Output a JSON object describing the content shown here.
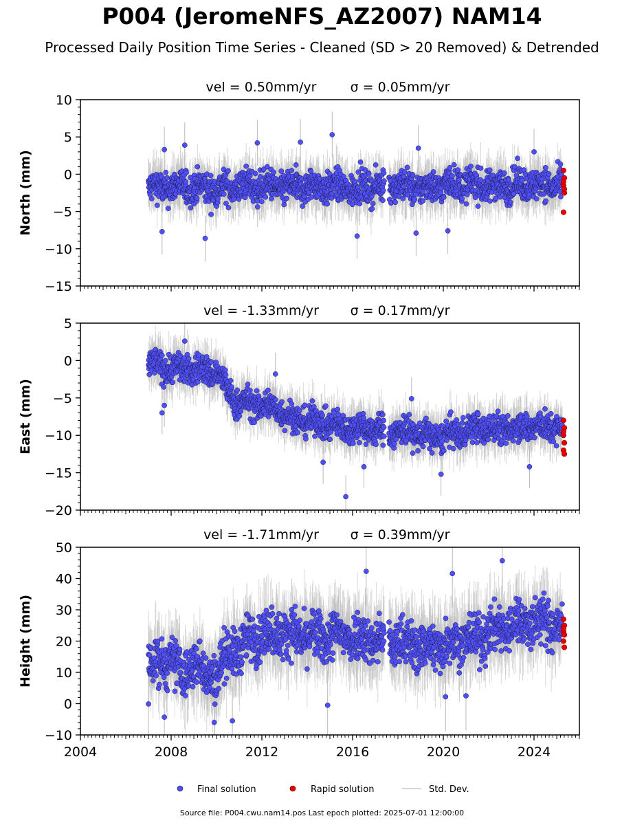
{
  "title": "P004 (JeromeNFS_AZ2007) NAM14",
  "subtitle": "Processed Daily Position Time Series - Cleaned (SD > 20 Removed) & Detrended",
  "footer": "Source file: P004.cwu.nam14.pos  Last epoch plotted: 2025-07-01 12:00:00",
  "colors": {
    "final": "#4f4ff5",
    "final_edge": "#1a1a4a",
    "rapid": "#e80000",
    "stddev": "#b8b8b8"
  },
  "legend": {
    "final": "Final solution",
    "rapid": "Rapid solution",
    "stddev": "Std. Dev."
  },
  "chart_data": [
    {
      "type": "scatter",
      "ylabel": "North (mm)",
      "vel_label": "vel = 0.50mm/yr",
      "sigma_label": "σ = 0.05mm/yr",
      "xlim": [
        2004,
        2026
      ],
      "ylim": [
        -15,
        10
      ],
      "yticks": [
        -15,
        -10,
        -5,
        0,
        5,
        10
      ],
      "xticks": [
        2004,
        2008,
        2012,
        2016,
        2020,
        2024
      ],
      "trend": [
        [
          2007.0,
          -1.8
        ],
        [
          2008.5,
          -1.7
        ],
        [
          2010.0,
          -2.0
        ],
        [
          2011.5,
          -1.5
        ],
        [
          2013.0,
          -1.8
        ],
        [
          2014.5,
          -1.6
        ],
        [
          2016.0,
          -2.0
        ],
        [
          2017.5,
          -1.4
        ],
        [
          2019.0,
          -1.9
        ],
        [
          2020.5,
          -1.2
        ],
        [
          2022.0,
          -1.6
        ],
        [
          2023.5,
          -1.3
        ],
        [
          2025.2,
          -1.5
        ]
      ],
      "spread": 1.4,
      "gap": [
        2017.4,
        2017.6
      ],
      "outliers": [
        [
          2007.6,
          -7.7
        ],
        [
          2009.5,
          -8.6
        ],
        [
          2015.1,
          5.3
        ],
        [
          2013.7,
          4.3
        ],
        [
          2016.2,
          -8.3
        ],
        [
          2011.8,
          4.2
        ],
        [
          2018.8,
          -7.9
        ],
        [
          2020.2,
          -7.6
        ],
        [
          2024.0,
          3.0
        ],
        [
          2018.9,
          3.5
        ],
        [
          2007.7,
          3.3
        ],
        [
          2008.6,
          3.9
        ]
      ],
      "rapid": [
        [
          2025.3,
          0.5
        ],
        [
          2025.3,
          -0.5
        ],
        [
          2025.3,
          -1.5
        ],
        [
          2025.3,
          -2.5
        ],
        [
          2025.3,
          -1.0
        ],
        [
          2025.3,
          -2.0
        ],
        [
          2025.3,
          -5.1
        ]
      ]
    },
    {
      "type": "scatter",
      "ylabel": "East (mm)",
      "vel_label": "vel = -1.33mm/yr",
      "sigma_label": "σ = 0.17mm/yr",
      "xlim": [
        2004,
        2026
      ],
      "ylim": [
        -20,
        5
      ],
      "yticks": [
        -20,
        -15,
        -10,
        -5,
        0,
        5
      ],
      "xticks": [
        2004,
        2008,
        2012,
        2016,
        2020,
        2024
      ],
      "trend": [
        [
          2007.0,
          -0.5
        ],
        [
          2008.0,
          -1.0
        ],
        [
          2009.0,
          -1.2
        ],
        [
          2010.0,
          -1.5
        ],
        [
          2010.4,
          -3.5
        ],
        [
          2010.8,
          -5.5
        ],
        [
          2012.0,
          -6.0
        ],
        [
          2012.8,
          -6.5
        ],
        [
          2013.3,
          -7.8
        ],
        [
          2014.5,
          -8.2
        ],
        [
          2015.5,
          -9.0
        ],
        [
          2016.5,
          -9.0
        ],
        [
          2017.5,
          -9.5
        ],
        [
          2018.5,
          -9.5
        ],
        [
          2019.5,
          -10.3
        ],
        [
          2020.5,
          -9.8
        ],
        [
          2021.5,
          -9.0
        ],
        [
          2022.5,
          -9.2
        ],
        [
          2023.5,
          -8.8
        ],
        [
          2025.2,
          -9.0
        ]
      ],
      "spread": 1.3,
      "gap": [
        2017.4,
        2017.6
      ],
      "outliers": [
        [
          2007.6,
          -7.0
        ],
        [
          2007.7,
          -6.0
        ],
        [
          2015.7,
          -18.2
        ],
        [
          2012.6,
          -1.8
        ],
        [
          2008.6,
          2.6
        ],
        [
          2014.7,
          -13.6
        ],
        [
          2019.9,
          -15.2
        ],
        [
          2023.8,
          -14.2
        ],
        [
          2016.5,
          -14.2
        ],
        [
          2018.6,
          -5.1
        ]
      ],
      "rapid": [
        [
          2025.3,
          -8.0
        ],
        [
          2025.3,
          -9.0
        ],
        [
          2025.3,
          -10.0
        ],
        [
          2025.3,
          -11.0
        ],
        [
          2025.3,
          -12.0
        ],
        [
          2025.3,
          -12.5
        ],
        [
          2025.3,
          -9.5
        ]
      ]
    },
    {
      "type": "scatter",
      "ylabel": "Height (mm)",
      "vel_label": "vel = -1.71mm/yr",
      "sigma_label": "σ = 0.39mm/yr",
      "xlim": [
        2004,
        2026
      ],
      "ylim": [
        -10,
        50
      ],
      "yticks": [
        -10,
        0,
        10,
        20,
        30,
        40,
        50
      ],
      "xticks": [
        2004,
        2008,
        2012,
        2016,
        2020,
        2024
      ],
      "trend": [
        [
          2007.0,
          12.0
        ],
        [
          2008.0,
          14.0
        ],
        [
          2008.5,
          9.0
        ],
        [
          2009.0,
          13.0
        ],
        [
          2009.5,
          10.0
        ],
        [
          2010.0,
          9.0
        ],
        [
          2010.5,
          17.0
        ],
        [
          2011.0,
          17.0
        ],
        [
          2011.5,
          21.0
        ],
        [
          2012.5,
          23.0
        ],
        [
          2013.5,
          22.0
        ],
        [
          2014.5,
          21.0
        ],
        [
          2015.5,
          22.0
        ],
        [
          2016.5,
          21.0
        ],
        [
          2017.5,
          20.0
        ],
        [
          2018.5,
          19.0
        ],
        [
          2019.5,
          18.0
        ],
        [
          2020.5,
          20.0
        ],
        [
          2021.5,
          21.0
        ],
        [
          2022.5,
          24.0
        ],
        [
          2023.5,
          26.0
        ],
        [
          2024.5,
          26.0
        ],
        [
          2025.2,
          24.0
        ]
      ],
      "spread": 5.0,
      "gap": [
        2017.4,
        2017.6
      ],
      "outliers": [
        [
          2016.6,
          42.3
        ],
        [
          2022.6,
          45.7
        ],
        [
          2020.4,
          41.6
        ],
        [
          2014.9,
          -0.5
        ],
        [
          2009.9,
          -6.0
        ],
        [
          2007.7,
          -4.3
        ],
        [
          2021.0,
          2.5
        ],
        [
          2020.1,
          2.2
        ],
        [
          2007.0,
          -0.1
        ],
        [
          2010.7,
          -5.5
        ]
      ],
      "rapid": [
        [
          2025.3,
          27.0
        ],
        [
          2025.3,
          25.0
        ],
        [
          2025.3,
          23.0
        ],
        [
          2025.3,
          22.0
        ],
        [
          2025.3,
          20.0
        ],
        [
          2025.3,
          18.0
        ],
        [
          2025.3,
          24.0
        ]
      ]
    }
  ]
}
